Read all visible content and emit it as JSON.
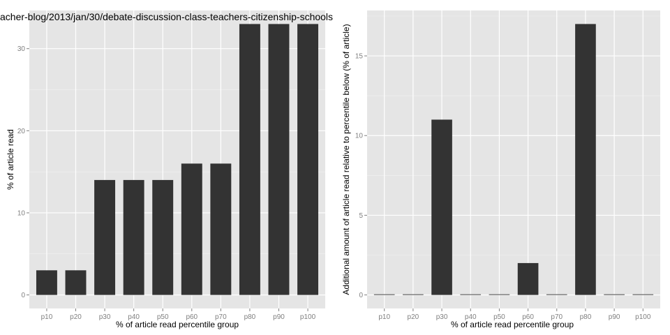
{
  "colors": {
    "panel_bg": "#e5e5e5",
    "grid_major": "#ffffff",
    "grid_minor": "#f2f2f2",
    "bar_fill": "#333333",
    "tick_text": "#7f7f7f"
  },
  "chart_data": [
    {
      "type": "bar",
      "title": "acher-blog/2013/jan/30/debate-discussion-class-teachers-citizenship-schools",
      "xlabel": "% of article read percentile group",
      "ylabel": "% of article read",
      "categories": [
        "p10",
        "p20",
        "p30",
        "p40",
        "p50",
        "p60",
        "p70",
        "p80",
        "p90",
        "p100"
      ],
      "values": [
        3,
        3,
        14,
        14,
        14,
        16,
        16,
        33,
        33,
        33
      ],
      "ylim": [
        -1.65,
        34.65
      ],
      "yticks": [
        0,
        10,
        20,
        30
      ],
      "grid": true
    },
    {
      "type": "bar",
      "title": "",
      "xlabel": "% of article read percentile group",
      "ylabel": "Additional amount of article read relative to percentile below (% of article)",
      "categories": [
        "p10",
        "p20",
        "p30",
        "p40",
        "p50",
        "p60",
        "p70",
        "p80",
        "p90",
        "p100"
      ],
      "values": [
        0,
        0,
        11,
        0,
        0,
        2,
        0,
        17,
        0,
        0
      ],
      "ylim": [
        -0.85,
        17.85
      ],
      "yticks": [
        0,
        5,
        10,
        15
      ],
      "grid": true
    }
  ]
}
